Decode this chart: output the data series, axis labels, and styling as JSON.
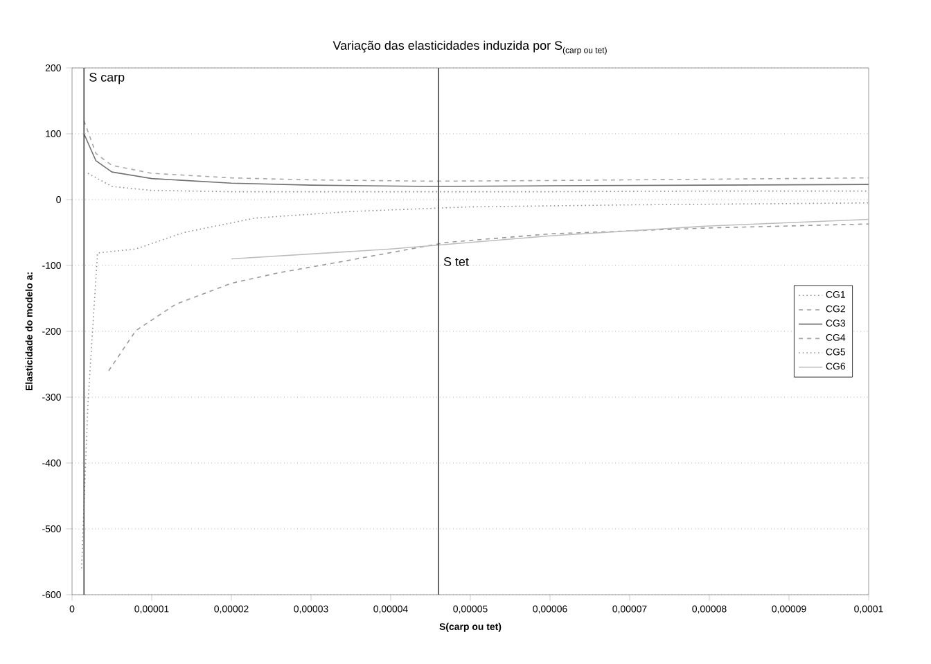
{
  "chart_data": {
    "type": "line",
    "title": "\\text{Variação das elasticidades induzida por S}_{\\text{(carp ou tet)}}",
    "xlabel": "S(carp ou tet)",
    "ylabel": "Elasticidade do modelo a:",
    "xlim": [
      0,
      0.0001
    ],
    "ylim": [
      -600,
      200
    ],
    "xticks": [
      0,
      {
        "value": 1e-05,
        "label": "0,00001"
      },
      {
        "value": 2e-05,
        "label": "0,00002"
      },
      {
        "value": 3e-05,
        "label": "0,00003"
      },
      {
        "value": 4e-05,
        "label": "0,00004"
      },
      {
        "value": 5e-05,
        "label": "0,00005"
      },
      {
        "value": 6e-05,
        "label": "0,00006"
      },
      {
        "value": 7e-05,
        "label": "0,00007"
      },
      {
        "value": 8e-05,
        "label": "0,00008"
      },
      {
        "value": 9e-05,
        "label": "0,00009"
      },
      {
        "value": 0.0001,
        "label": "0,0001"
      }
    ],
    "yticks": [
      -600,
      -500,
      -400,
      -300,
      -200,
      -100,
      0,
      100,
      200
    ],
    "grid": "y",
    "legend": "right",
    "series": [
      {
        "name": "CG1",
        "color": "#8c8c8c",
        "line_style": "dotted",
        "x": [
          2e-06,
          5e-06,
          1e-05,
          2e-05,
          4e-05,
          6e-05,
          8e-05,
          0.0001
        ],
        "values": [
          40,
          20,
          14,
          12,
          12,
          12,
          13,
          13
        ]
      },
      {
        "name": "CG2",
        "color": "#9a9a9a",
        "line_style": "dashed",
        "x": [
          4.6e-06,
          8e-06,
          1.3e-05,
          2e-05,
          2.6e-05,
          3.3e-05,
          4.7e-05,
          6e-05,
          8e-05,
          0.0001
        ],
        "values": [
          -260,
          -199,
          -159,
          -127,
          -111,
          -96,
          -65,
          -52,
          -43,
          -37
        ]
      },
      {
        "name": "CG3",
        "color": "#707070",
        "line_style": "solid",
        "x": [
          1.5e-06,
          3e-06,
          5e-06,
          1e-05,
          2e-05,
          3e-05,
          4.5e-05,
          6e-05,
          8e-05,
          0.0001
        ],
        "values": [
          100,
          59,
          42,
          32,
          25,
          22,
          20,
          21,
          22,
          23
        ]
      },
      {
        "name": "CG4",
        "color": "#a8a8a8",
        "line_style": "dashed",
        "x": [
          1.5e-06,
          3e-06,
          5e-06,
          1e-05,
          2e-05,
          3e-05,
          4.5e-05,
          6e-05,
          8e-05,
          0.0001
        ],
        "values": [
          120,
          70,
          52,
          40,
          33,
          30,
          28,
          29,
          31,
          33
        ]
      },
      {
        "name": "CG5",
        "color": "#909090",
        "line_style": "dotted",
        "x": [
          1.2e-06,
          2e-06,
          3.2e-06,
          8e-06,
          1.4e-05,
          2.3e-05,
          3.5e-05,
          5e-05,
          7e-05,
          0.0001
        ],
        "values": [
          -560,
          -308,
          -81,
          -75,
          -50,
          -28,
          -18,
          -11,
          -8,
          -5
        ]
      },
      {
        "name": "CG6",
        "color": "#bdbdbd",
        "line_style": "solid",
        "x": [
          2e-05,
          4e-05,
          6e-05,
          8e-05,
          0.0001
        ],
        "values": [
          -90,
          -75,
          -55,
          -40,
          -30
        ]
      }
    ],
    "ref_lines": [
      {
        "axis": "x",
        "value": 1.5e-06,
        "label": "S carp",
        "color": "#404040"
      },
      {
        "axis": "x",
        "value": 4.6e-05,
        "label": "S tet",
        "color": "#404040"
      }
    ]
  }
}
